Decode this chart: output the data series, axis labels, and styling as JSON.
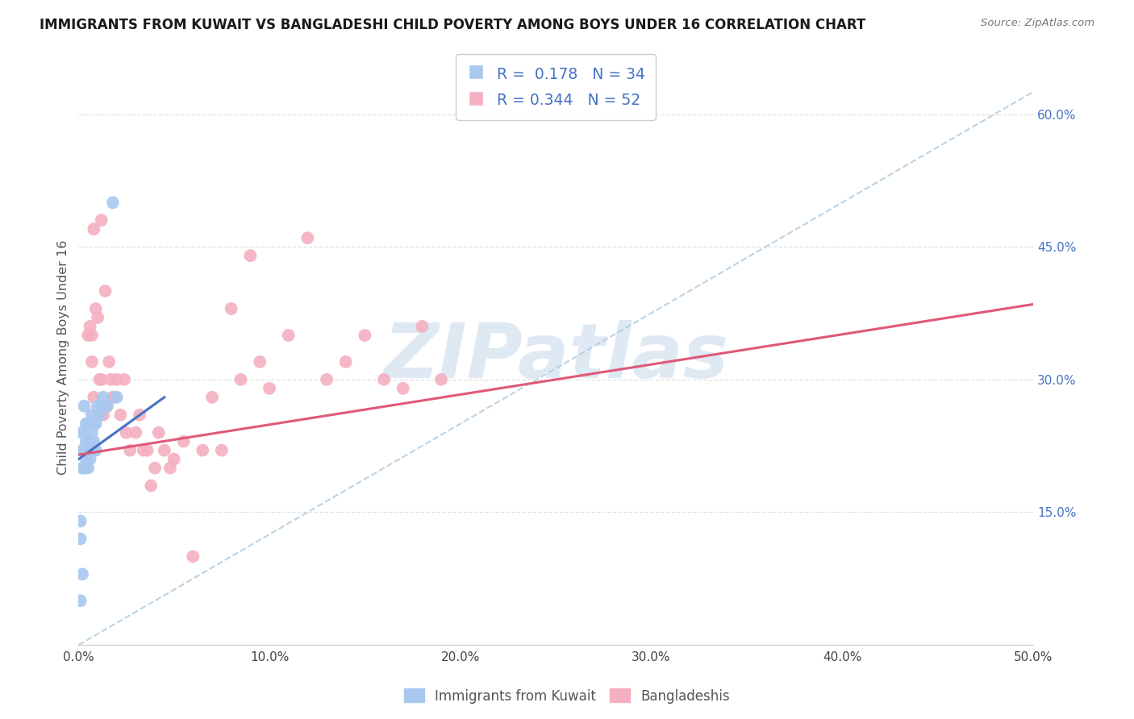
{
  "title": "IMMIGRANTS FROM KUWAIT VS BANGLADESHI CHILD POVERTY AMONG BOYS UNDER 16 CORRELATION CHART",
  "source": "Source: ZipAtlas.com",
  "ylabel": "Child Poverty Among Boys Under 16",
  "xlim": [
    0,
    0.5
  ],
  "ylim": [
    0,
    0.65
  ],
  "xtick_labels": [
    "0.0%",
    "10.0%",
    "20.0%",
    "30.0%",
    "40.0%",
    "50.0%"
  ],
  "xtick_values": [
    0.0,
    0.1,
    0.2,
    0.3,
    0.4,
    0.5
  ],
  "ytick_labels": [
    "15.0%",
    "30.0%",
    "45.0%",
    "60.0%"
  ],
  "ytick_values": [
    0.15,
    0.3,
    0.45,
    0.6
  ],
  "legend_labels_bottom": [
    "Immigrants from Kuwait",
    "Bangladeshis"
  ],
  "R_blue": 0.178,
  "N_blue": 34,
  "R_pink": 0.344,
  "N_pink": 52,
  "blue_scatter_color": "#a8c8f0",
  "blue_line_color": "#4472c4",
  "pink_scatter_color": "#f4b0c0",
  "pink_line_color": "#e05878",
  "dashed_color": "#b0cce0",
  "watermark": "ZIPatlas",
  "watermark_color": "#c5d8ea",
  "blue_x": [
    0.001,
    0.001,
    0.002,
    0.002,
    0.002,
    0.003,
    0.003,
    0.003,
    0.003,
    0.004,
    0.004,
    0.004,
    0.005,
    0.005,
    0.005,
    0.006,
    0.006,
    0.006,
    0.007,
    0.007,
    0.007,
    0.008,
    0.008,
    0.009,
    0.009,
    0.01,
    0.011,
    0.012,
    0.013,
    0.015,
    0.018,
    0.02,
    0.001,
    0.002
  ],
  "blue_y": [
    0.12,
    0.14,
    0.2,
    0.22,
    0.24,
    0.2,
    0.22,
    0.24,
    0.27,
    0.21,
    0.23,
    0.25,
    0.2,
    0.22,
    0.25,
    0.21,
    0.23,
    0.25,
    0.22,
    0.24,
    0.26,
    0.23,
    0.25,
    0.22,
    0.25,
    0.27,
    0.26,
    0.27,
    0.28,
    0.27,
    0.5,
    0.28,
    0.05,
    0.08
  ],
  "pink_x": [
    0.005,
    0.006,
    0.007,
    0.007,
    0.008,
    0.009,
    0.01,
    0.011,
    0.012,
    0.013,
    0.014,
    0.015,
    0.016,
    0.017,
    0.018,
    0.019,
    0.02,
    0.022,
    0.024,
    0.025,
    0.027,
    0.03,
    0.032,
    0.034,
    0.036,
    0.038,
    0.04,
    0.042,
    0.045,
    0.048,
    0.05,
    0.055,
    0.06,
    0.065,
    0.07,
    0.075,
    0.08,
    0.085,
    0.09,
    0.095,
    0.1,
    0.11,
    0.12,
    0.13,
    0.14,
    0.15,
    0.16,
    0.17,
    0.18,
    0.19,
    0.012,
    0.008
  ],
  "pink_y": [
    0.35,
    0.36,
    0.32,
    0.35,
    0.28,
    0.38,
    0.37,
    0.3,
    0.3,
    0.26,
    0.4,
    0.27,
    0.32,
    0.3,
    0.28,
    0.28,
    0.3,
    0.26,
    0.3,
    0.24,
    0.22,
    0.24,
    0.26,
    0.22,
    0.22,
    0.18,
    0.2,
    0.24,
    0.22,
    0.2,
    0.21,
    0.23,
    0.1,
    0.22,
    0.28,
    0.22,
    0.38,
    0.3,
    0.44,
    0.32,
    0.29,
    0.35,
    0.46,
    0.3,
    0.32,
    0.35,
    0.3,
    0.29,
    0.36,
    0.3,
    0.48,
    0.47
  ],
  "blue_line_x0": 0.0,
  "blue_line_y0": 0.21,
  "blue_line_x1": 0.045,
  "blue_line_y1": 0.28,
  "pink_line_x0": 0.0,
  "pink_line_y0": 0.215,
  "pink_line_x1": 0.5,
  "pink_line_y1": 0.385,
  "dash_line_x0": 0.0,
  "dash_line_y0": 0.0,
  "dash_line_x1": 0.5,
  "dash_line_y1": 0.625
}
